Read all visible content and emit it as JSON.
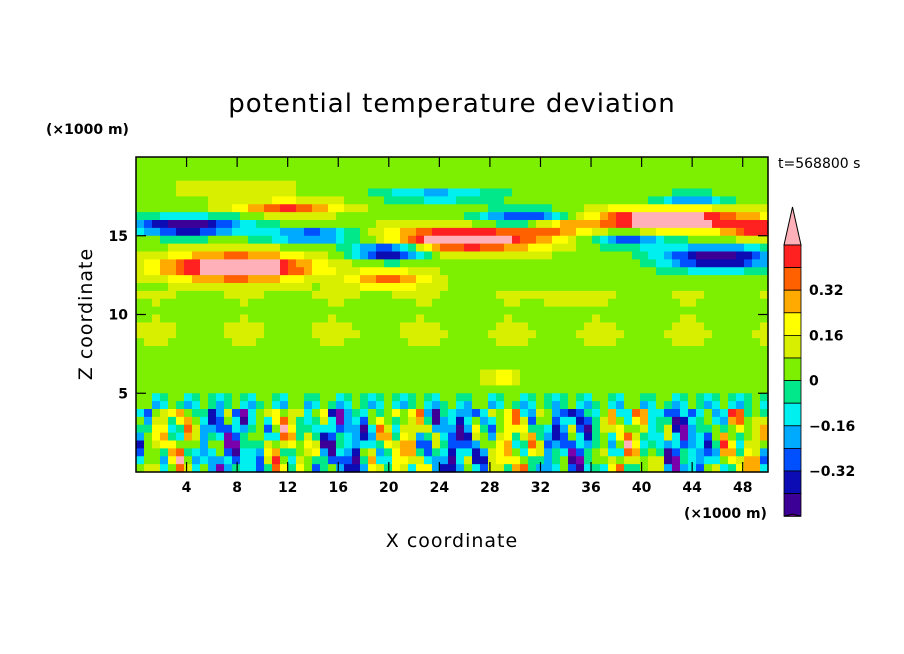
{
  "chart_data": {
    "type": "heatmap",
    "title": "potential temperature deviation",
    "xlabel": "X coordinate",
    "ylabel": "Z coordinate",
    "x_unit": "(×1000 m)",
    "y_unit": "(×1000 m)",
    "time_label": "t=568800 s",
    "xlim": [
      0,
      50
    ],
    "ylim": [
      0,
      20
    ],
    "xticks": [
      "4",
      "8",
      "12",
      "16",
      "20",
      "24",
      "28",
      "32",
      "36",
      "40",
      "44",
      "48"
    ],
    "yticks": [
      "5",
      "10",
      "15"
    ],
    "colorbar": {
      "levels": [
        -0.48,
        -0.4,
        -0.32,
        -0.24,
        -0.16,
        -0.08,
        0,
        0.08,
        0.16,
        0.24,
        0.32,
        0.4,
        0.48
      ],
      "colors": [
        "#7a00ac",
        "#3c0096",
        "#0c0cb4",
        "#0050ff",
        "#00aaff",
        "#00f0f0",
        "#00e88a",
        "#7cf000",
        "#d8f000",
        "#ffff00",
        "#ffaa00",
        "#ff6000",
        "#ff2020",
        "#ffb0b8"
      ],
      "tick_labels": [
        "0.32",
        "0.16",
        "0",
        "−0.16",
        "−0.32"
      ],
      "tick_values": [
        0.32,
        0.16,
        0,
        -0.16,
        -0.32
      ]
    },
    "features": [
      {
        "x": 8,
        "z": 13.0,
        "value": 0.55
      },
      {
        "x": 26,
        "z": 14.8,
        "value": 0.55
      },
      {
        "x": 42,
        "z": 16.0,
        "value": 0.55
      },
      {
        "x": 4,
        "z": 15.8,
        "value": -0.45
      },
      {
        "x": 20,
        "z": 14.0,
        "value": -0.45
      },
      {
        "x": 32,
        "z": 16.0,
        "value": -0.4
      },
      {
        "x": 46,
        "z": 13.5,
        "value": -0.45
      }
    ]
  }
}
